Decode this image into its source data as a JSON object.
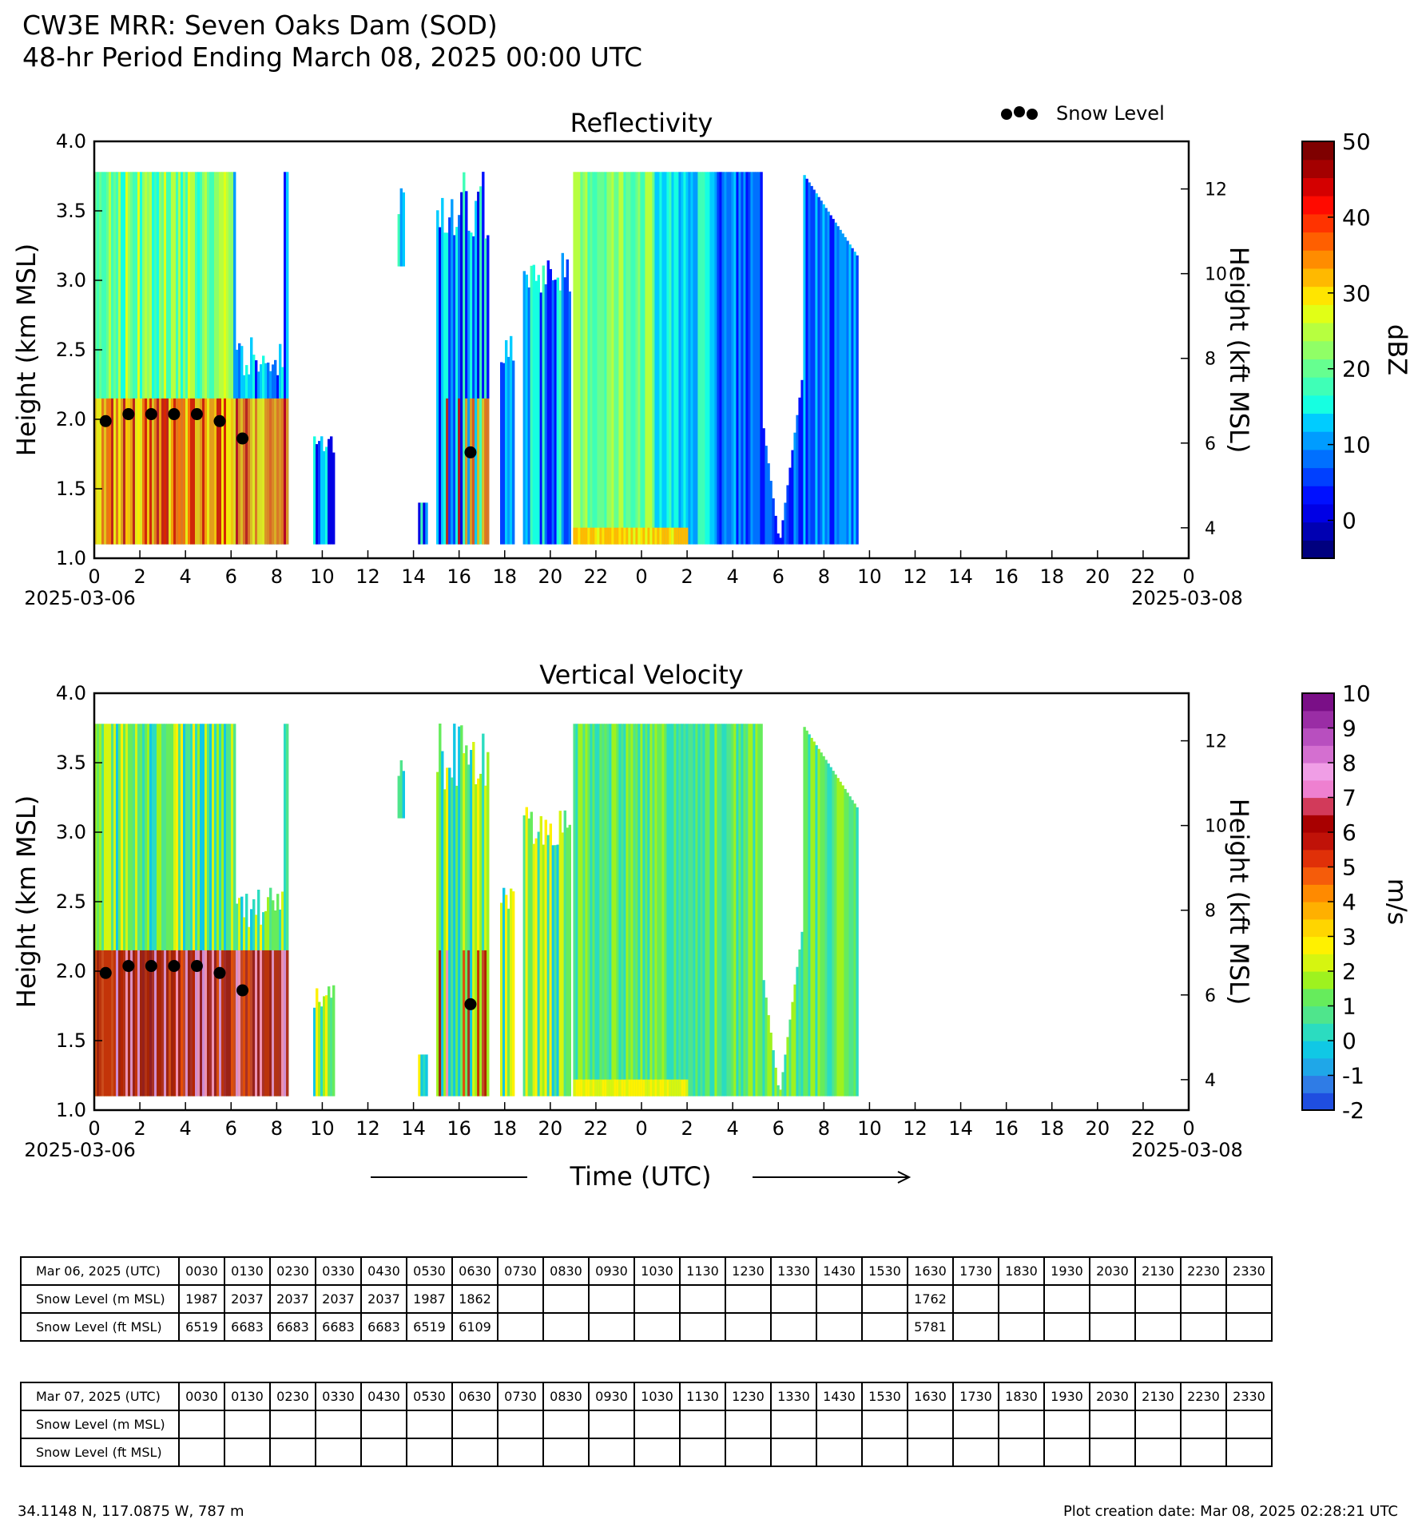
{
  "title": {
    "line1": "CW3E MRR: Seven Oaks Dam (SOD)",
    "line2": "48-hr Period Ending March 08, 2025 00:00 UTC"
  },
  "legend": {
    "snow_level_label": "Snow Level"
  },
  "x_axis": {
    "label": "Time (UTC)",
    "ticks": [
      "0",
      "2",
      "4",
      "6",
      "8",
      "10",
      "12",
      "14",
      "16",
      "18",
      "20",
      "22",
      "0",
      "2",
      "4",
      "6",
      "8",
      "10",
      "12",
      "14",
      "16",
      "18",
      "20",
      "22",
      "0"
    ],
    "start_date": "2025-03-06",
    "end_date": "2025-03-08"
  },
  "chart_data": [
    {
      "type": "heatmap",
      "title": "Reflectivity",
      "ylabel": "Height (km MSL)",
      "ylabel_right": "Height (kft MSL)",
      "ylim": [
        1.0,
        4.0
      ],
      "yticks": [
        "1.0",
        "1.5",
        "2.0",
        "2.5",
        "3.0",
        "3.5",
        "4.0"
      ],
      "yticks_right": [
        "4",
        "6",
        "8",
        "10",
        "12"
      ],
      "colorbar": {
        "label": "dBZ",
        "range": [
          -5,
          50
        ],
        "ticks": [
          "0",
          "10",
          "20",
          "30",
          "40",
          "50"
        ],
        "colors": [
          "#00007f",
          "#0000b2",
          "#0000e5",
          "#0010ff",
          "#0040ff",
          "#0070ff",
          "#009cff",
          "#00ccff",
          "#16ffe1",
          "#3fffb7",
          "#66ff90",
          "#90ff66",
          "#b7ff3f",
          "#e1ff16",
          "#ffe500",
          "#ffb900",
          "#ff8c00",
          "#ff5f00",
          "#ff3300",
          "#ff0a00",
          "#d40000",
          "#a40000",
          "#7f0000"
        ]
      },
      "snow_level": {
        "x_hours": [
          0.5,
          1.5,
          2.5,
          3.5,
          4.5,
          5.5,
          6.5,
          16.5
        ],
        "y_km": [
          1.987,
          2.037,
          2.037,
          2.037,
          2.037,
          1.987,
          1.862,
          1.762
        ]
      },
      "data_coverage_hours": [
        [
          0,
          8.5
        ],
        [
          9.6,
          10.5
        ],
        [
          13.3,
          13.6
        ],
        [
          14.2,
          14.6
        ],
        [
          15.0,
          17.3
        ],
        [
          17.8,
          18.4
        ],
        [
          18.8,
          20.8
        ],
        [
          21.0,
          33.5
        ]
      ],
      "data_top_km": 3.78,
      "data_bottom_km": 1.1
    },
    {
      "type": "heatmap",
      "title": "Vertical Velocity",
      "ylabel": "Height (km MSL)",
      "ylabel_right": "Height (kft MSL)",
      "ylim": [
        1.0,
        4.0
      ],
      "yticks": [
        "1.0",
        "1.5",
        "2.0",
        "2.5",
        "3.0",
        "3.5",
        "4.0"
      ],
      "yticks_right": [
        "4",
        "6",
        "8",
        "10",
        "12"
      ],
      "colorbar": {
        "label": "m/s",
        "range": [
          -2,
          10
        ],
        "ticks": [
          "-2",
          "-1",
          "0",
          "1",
          "2",
          "3",
          "4",
          "5",
          "6",
          "7",
          "8",
          "9",
          "10"
        ],
        "colors": [
          "#1f4ee0",
          "#2f7ce6",
          "#1fa7e8",
          "#10c8e5",
          "#2bdcc0",
          "#4fe58c",
          "#66ec5c",
          "#9ef21f",
          "#d6f510",
          "#fff100",
          "#ffd500",
          "#ffb000",
          "#ff8a00",
          "#f55c0a",
          "#e03008",
          "#c01208",
          "#a80000",
          "#d23a5a",
          "#ee80d0",
          "#f09ee6",
          "#d46fd0",
          "#b84fbf",
          "#9a2da5",
          "#7a0f87"
        ]
      },
      "snow_level": {
        "x_hours": [
          0.5,
          1.5,
          2.5,
          3.5,
          4.5,
          5.5,
          6.5,
          16.5
        ],
        "y_km": [
          1.987,
          2.037,
          2.037,
          2.037,
          2.037,
          1.987,
          1.862,
          1.762
        ]
      },
      "data_coverage_hours": [
        [
          0,
          8.5
        ],
        [
          9.6,
          10.5
        ],
        [
          13.3,
          13.6
        ],
        [
          14.2,
          14.6
        ],
        [
          15.0,
          17.3
        ],
        [
          17.8,
          18.4
        ],
        [
          18.8,
          20.8
        ],
        [
          21.0,
          33.5
        ]
      ],
      "data_top_km": 3.78,
      "data_bottom_km": 1.1
    },
    {
      "type": "table",
      "title": "Snow Level",
      "tables": [
        {
          "header": "Mar 06, 2025 (UTC)",
          "times": [
            "0030",
            "0130",
            "0230",
            "0330",
            "0430",
            "0530",
            "0630",
            "0730",
            "0830",
            "0930",
            "1030",
            "1130",
            "1230",
            "1330",
            "1430",
            "1530",
            "1630",
            "1730",
            "1830",
            "1930",
            "2030",
            "2130",
            "2230",
            "2330"
          ],
          "rows": [
            {
              "label": "Snow Level (m MSL)",
              "values": [
                "1987",
                "2037",
                "2037",
                "2037",
                "2037",
                "1987",
                "1862",
                "",
                "",
                "",
                "",
                "",
                "",
                "",
                "",
                "",
                "1762",
                "",
                "",
                "",
                "",
                "",
                "",
                ""
              ]
            },
            {
              "label": "Snow Level (ft MSL)",
              "values": [
                "6519",
                "6683",
                "6683",
                "6683",
                "6683",
                "6519",
                "6109",
                "",
                "",
                "",
                "",
                "",
                "",
                "",
                "",
                "",
                "5781",
                "",
                "",
                "",
                "",
                "",
                "",
                ""
              ]
            }
          ]
        },
        {
          "header": "Mar 07, 2025 (UTC)",
          "times": [
            "0030",
            "0130",
            "0230",
            "0330",
            "0430",
            "0530",
            "0630",
            "0730",
            "0830",
            "0930",
            "1030",
            "1130",
            "1230",
            "1330",
            "1430",
            "1530",
            "1630",
            "1730",
            "1830",
            "1930",
            "2030",
            "2130",
            "2230",
            "2330"
          ],
          "rows": [
            {
              "label": "Snow Level (m MSL)",
              "values": [
                "",
                "",
                "",
                "",
                "",
                "",
                "",
                "",
                "",
                "",
                "",
                "",
                "",
                "",
                "",
                "",
                "",
                "",
                "",
                "",
                "",
                "",
                "",
                ""
              ]
            },
            {
              "label": "Snow Level (ft MSL)",
              "values": [
                "",
                "",
                "",
                "",
                "",
                "",
                "",
                "",
                "",
                "",
                "",
                "",
                "",
                "",
                "",
                "",
                "",
                "",
                "",
                "",
                "",
                "",
                "",
                ""
              ]
            }
          ]
        }
      ]
    }
  ],
  "footer": {
    "location": "34.1148 N, 117.0875 W, 787 m",
    "creation": "Plot creation date: Mar 08, 2025 02:28:21 UTC"
  }
}
